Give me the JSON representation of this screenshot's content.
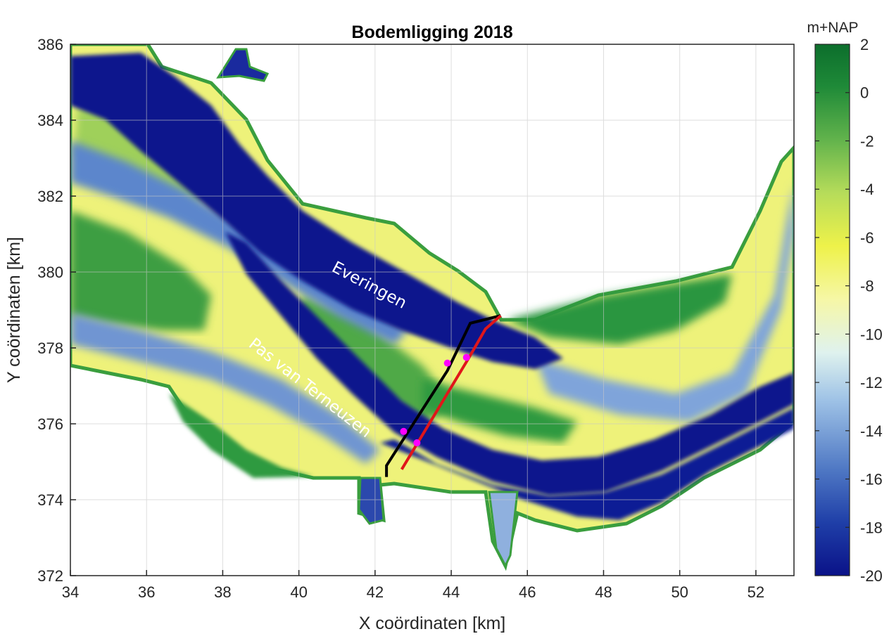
{
  "title": "Bodemligging 2018",
  "xlabel": "X coördinaten [km]",
  "ylabel": "Y coördinaten [km]",
  "xticks": [
    "34",
    "36",
    "38",
    "40",
    "42",
    "44",
    "46",
    "48",
    "50",
    "52"
  ],
  "yticks": [
    "372",
    "374",
    "376",
    "378",
    "380",
    "382",
    "384",
    "386"
  ],
  "colorbar": {
    "unit": "m+NAP",
    "ticks": [
      "2",
      "0",
      "-2",
      "-4",
      "-6",
      "-8",
      "-10",
      "-12",
      "-14",
      "-16",
      "-18",
      "-20"
    ],
    "range": [
      -20,
      2
    ],
    "colors": [
      "#0a1288",
      "#1f3fa8",
      "#4f78c4",
      "#9ec2e6",
      "#dff2ee",
      "#f6f7a6",
      "#eef24a",
      "#b6dc5a",
      "#62b34c",
      "#1f8a38",
      "#0c6e2c"
    ]
  },
  "annotations": {
    "channel_1": "Everingen",
    "channel_2": "Pas van Terneuzen"
  },
  "map": {
    "xlim": [
      34,
      53
    ],
    "ylim": [
      372,
      386
    ],
    "grid": true,
    "colors": {
      "deep": "#0d168d",
      "mid": "#4f78c4",
      "shallow": "#f1f28c",
      "land_green": "#2f9a40",
      "black_line": "#000000",
      "red_line": "#e0161a",
      "markers": "#ff00ff"
    },
    "black_line": [
      [
        42.3,
        374.6
      ],
      [
        42.3,
        374.9
      ],
      [
        43.9,
        377.4
      ],
      [
        44.5,
        378.65
      ],
      [
        45.3,
        378.85
      ]
    ],
    "red_line": [
      [
        42.7,
        374.8
      ],
      [
        44.5,
        377.8
      ],
      [
        44.9,
        378.5
      ],
      [
        45.3,
        378.85
      ]
    ],
    "markers": [
      [
        42.75,
        375.8
      ],
      [
        43.1,
        375.5
      ],
      [
        43.9,
        377.6
      ],
      [
        44.4,
        377.75
      ]
    ]
  }
}
